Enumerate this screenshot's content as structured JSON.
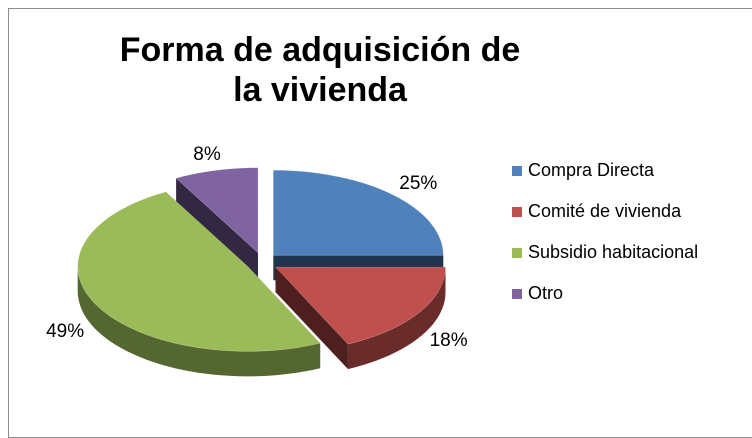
{
  "chart_data": {
    "type": "pie",
    "title": "Forma de adquisición de la vivienda",
    "categories": [
      "Compra Directa",
      "Comité de vivienda",
      "Subsidio habitacional",
      "Otro"
    ],
    "values": [
      25,
      18,
      49,
      8
    ],
    "value_labels": [
      "25%",
      "18%",
      "49%",
      "8%"
    ],
    "colors": [
      "#4f81bd",
      "#c0504d",
      "#9bbb59",
      "#8064a2"
    ],
    "legend": "right"
  }
}
